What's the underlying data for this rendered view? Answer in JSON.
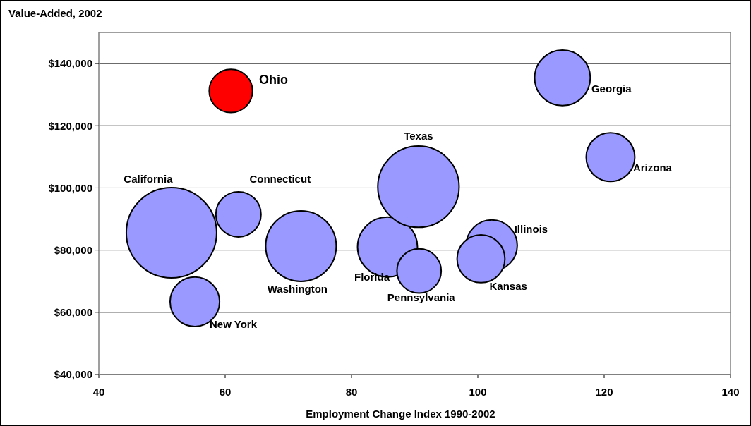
{
  "chart_data": {
    "type": "bubble",
    "title": "Value-Added, 2002",
    "xlabel": "Employment Change Index 1990-2002",
    "xlim": [
      40,
      140
    ],
    "xticks": [
      40,
      60,
      80,
      100,
      120,
      140
    ],
    "ylim": [
      40000,
      150000
    ],
    "yticks": [
      {
        "value": 40000,
        "label": "$40,000"
      },
      {
        "value": 60000,
        "label": "$60,000"
      },
      {
        "value": 80000,
        "label": "$80,000"
      },
      {
        "value": 100000,
        "label": "$100,000"
      },
      {
        "value": 120000,
        "label": "$120,000"
      },
      {
        "value": 140000,
        "label": "$140,000"
      }
    ],
    "grid": "y",
    "series": [
      {
        "name": "Ohio",
        "color": "#ff0000",
        "x": [
          60.9
        ],
        "values": [
          131200
        ],
        "sizes": [
          0.23
        ]
      },
      {
        "name": "California",
        "color": "#9999ff",
        "x": [
          51.5
        ],
        "values": [
          85600
        ],
        "sizes": [
          1
        ]
      },
      {
        "name": "Connecticut",
        "color": "#9999ff",
        "x": [
          62.1
        ],
        "values": [
          91500
        ],
        "sizes": [
          0.25
        ]
      },
      {
        "name": "New York",
        "color": "#9999ff",
        "x": [
          55.2
        ],
        "values": [
          63400
        ],
        "sizes": [
          0.3
        ]
      },
      {
        "name": "Washington",
        "color": "#9999ff",
        "x": [
          72.0
        ],
        "values": [
          81300
        ],
        "sizes": [
          0.61
        ]
      },
      {
        "name": "Florida",
        "color": "#9999ff",
        "x": [
          85.7
        ],
        "values": [
          81000
        ],
        "sizes": [
          0.44
        ]
      },
      {
        "name": "Texas",
        "color": "#9999ff",
        "x": [
          90.6
        ],
        "values": [
          100400
        ],
        "sizes": [
          0.81
        ]
      },
      {
        "name": "Pennsylvania",
        "color": "#9999ff",
        "x": [
          90.7
        ],
        "values": [
          73300
        ],
        "sizes": [
          0.24
        ]
      },
      {
        "name": "Illinois",
        "color": "#9999ff",
        "x": [
          102.2
        ],
        "values": [
          81500
        ],
        "sizes": [
          0.32
        ]
      },
      {
        "name": "Kansas",
        "color": "#9999ff",
        "x": [
          100.5
        ],
        "values": [
          77200
        ],
        "sizes": [
          0.28
        ]
      },
      {
        "name": "Georgia",
        "color": "#9999ff",
        "x": [
          113.4
        ],
        "values": [
          135400
        ],
        "sizes": [
          0.38
        ]
      },
      {
        "name": "Arizona",
        "color": "#9999ff",
        "x": [
          121.0
        ],
        "values": [
          109900
        ],
        "sizes": [
          0.29
        ]
      }
    ]
  }
}
